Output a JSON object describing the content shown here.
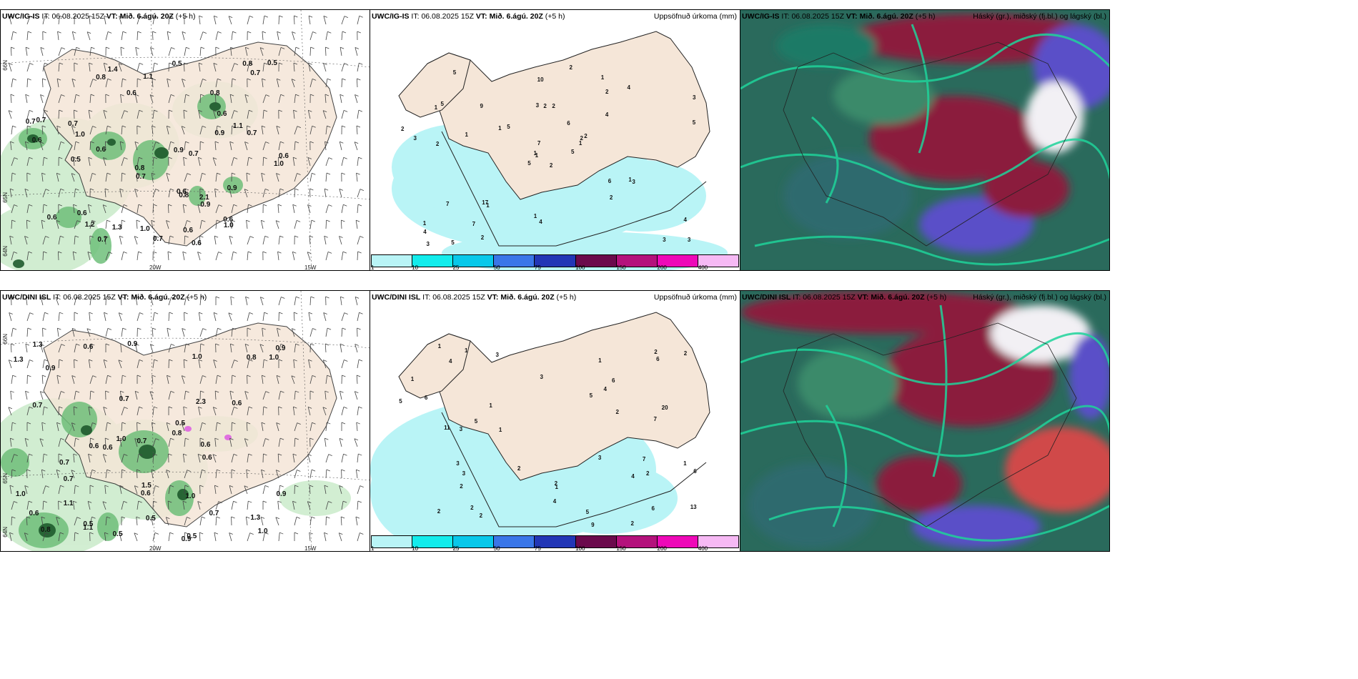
{
  "colors": {
    "land": "#f5e6d8",
    "rain_light": "#b9f4f6",
    "precip_green_light": "#cdeccd",
    "precip_green_mid": "#6fbf7a",
    "precip_green_dark": "#1e5a2c",
    "cloud_low": "#2a6a5c",
    "cloud_mid": "#1fd39a",
    "cloud_high": "#8b1a3c",
    "cloud_blue": "#5a4fc8"
  },
  "rows": [
    {
      "model": "UWC/IG-IS",
      "it_label": "IT:",
      "it_value": "06.08.2025 15Z",
      "vt_label": "VT:",
      "vt_value": "Mið. 6.ágú. 20Z",
      "lead": "(+5 h)",
      "wind_labels": [
        "0.6",
        "0.8",
        "0.6",
        "0.7",
        "1.1",
        "0.6",
        "1.0",
        "0.6",
        "0.7",
        "1.2",
        "0.6",
        "0.7",
        "0.8",
        "0.6",
        "0.9",
        "0.8",
        "0.6",
        "0.7",
        "0.9",
        "0.7",
        "0.6",
        "0.8",
        "0.7",
        "1.0",
        "0.7",
        "0.6",
        "0.5",
        "1.0",
        "0.7",
        "0.6",
        "0.9",
        "0.5",
        "0.8",
        "1.3",
        "1.4",
        "1.0",
        "0.5",
        "0.7",
        "0.6",
        "2.1",
        "1.1",
        "0.9"
      ],
      "precip_labels": [
        "2",
        "1",
        "1",
        "1",
        "2",
        "1",
        "1",
        "2",
        "2",
        "5",
        "5",
        "3",
        "2",
        "3",
        "5",
        "4",
        "5",
        "3",
        "6",
        "7",
        "5",
        "4",
        "7",
        "2",
        "2",
        "3",
        "5",
        "10",
        "3",
        "6",
        "5",
        "1",
        "1",
        "7",
        "9",
        "4",
        "17",
        "3",
        "4",
        "1",
        "2",
        "1",
        "1",
        "2",
        "2",
        "2",
        "1",
        "3",
        "4"
      ]
    },
    {
      "model": "UWC/DINI ISL",
      "it_label": "IT:",
      "it_value": "06.08.2025 15Z",
      "vt_label": "VT:",
      "vt_value": "Mið. 6.ágú. 20Z",
      "lead": "(+5 h)",
      "wind_labels": [
        "0.5",
        "0.9",
        "0.5",
        "0.7",
        "0.6",
        "0.9",
        "0.6",
        "1.0",
        "0.9",
        "0.7",
        "0.8",
        "0.5",
        "1.0",
        "0.6",
        "1.0",
        "0.8",
        "0.7",
        "1.1",
        "0.6",
        "1.3",
        "1.0",
        "0.9",
        "0.5",
        "0.8",
        "0.6",
        "0.7",
        "1.0",
        "0.7",
        "1.3",
        "0.6",
        "0.7",
        "0.5",
        "1.5",
        "1.0",
        "1.1",
        "0.6",
        "0.9",
        "0.6",
        "2.3",
        "1.3"
      ],
      "precip_labels": [
        "1",
        "2",
        "1",
        "2",
        "2",
        "1",
        "3",
        "6",
        "9",
        "7",
        "3",
        "6",
        "5",
        "2",
        "2",
        "4",
        "2",
        "2",
        "1",
        "3",
        "6",
        "7",
        "6",
        "11",
        "2",
        "5",
        "4",
        "2",
        "3",
        "5",
        "4",
        "20",
        "13",
        "5",
        "6",
        "3",
        "1",
        "2",
        "1",
        "1",
        "2",
        "4",
        "3",
        "1"
      ]
    }
  ],
  "precip_title": "Uppsöfnuð úrkoma (mm)",
  "cloud_title": "Háský (gr.), miðský (fj.bl.) og lágský (bl.)",
  "colorbar": {
    "ticks": [
      "1",
      "10",
      "25",
      "50",
      "75",
      "100",
      "150",
      "200",
      "400"
    ],
    "colors": [
      "#b9f4f6",
      "#13ecec",
      "#08c8ea",
      "#3a76e8",
      "#2236b6",
      "#6b0a4c",
      "#b4127c",
      "#ee09b8",
      "#f6b9f4"
    ]
  },
  "axes": {
    "lat_label_1": "66N",
    "lat_label_2": "65N",
    "lat_label_3": "64N",
    "lon_label_1": "20W",
    "lon_label_2": "15W"
  }
}
